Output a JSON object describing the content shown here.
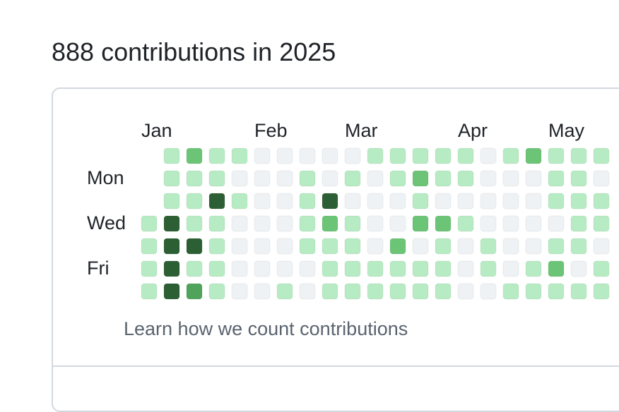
{
  "header": {
    "title": "888 contributions in 2025"
  },
  "calendar": {
    "months": [
      "Jan",
      "Feb",
      "Mar",
      "Apr",
      "May"
    ],
    "days": [
      "Mon",
      "Wed",
      "Fri"
    ],
    "level_colors": [
      "#eff2f5",
      "#b7ebc3",
      "#6cc476",
      "#4fa35a",
      "#2c5f33"
    ],
    "levels": [
      [
        null,
        1,
        2,
        1,
        1,
        0,
        0,
        0,
        0,
        0,
        1,
        1,
        1,
        1,
        1,
        0,
        1,
        2,
        1,
        1,
        1
      ],
      [
        null,
        1,
        1,
        1,
        0,
        0,
        0,
        1,
        0,
        1,
        0,
        1,
        2,
        1,
        1,
        0,
        0,
        0,
        1,
        1,
        0
      ],
      [
        null,
        1,
        1,
        4,
        1,
        0,
        0,
        1,
        4,
        0,
        0,
        0,
        1,
        0,
        0,
        0,
        0,
        0,
        1,
        1,
        1
      ],
      [
        1,
        4,
        1,
        1,
        0,
        0,
        0,
        1,
        2,
        1,
        0,
        0,
        2,
        2,
        1,
        0,
        0,
        0,
        0,
        1,
        1
      ],
      [
        1,
        4,
        4,
        1,
        0,
        0,
        0,
        1,
        1,
        1,
        0,
        2,
        0,
        1,
        0,
        1,
        0,
        0,
        1,
        1,
        0
      ],
      [
        1,
        4,
        1,
        1,
        0,
        0,
        0,
        0,
        1,
        1,
        1,
        1,
        1,
        1,
        0,
        1,
        0,
        1,
        2,
        0,
        1
      ],
      [
        1,
        4,
        3,
        1,
        0,
        0,
        1,
        0,
        1,
        1,
        1,
        1,
        1,
        1,
        0,
        0,
        1,
        1,
        1,
        1,
        1
      ]
    ]
  },
  "footer": {
    "link": "Learn how we count contributions"
  }
}
